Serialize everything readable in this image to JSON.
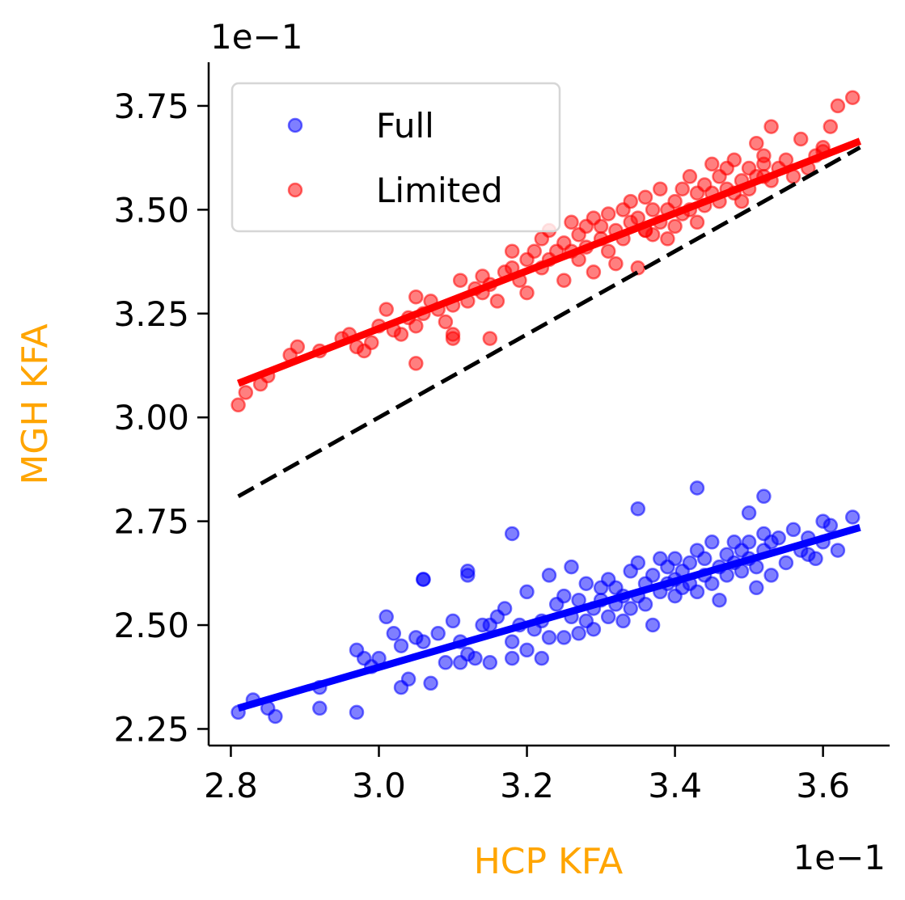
{
  "chart_data": {
    "type": "scatter",
    "xlabel": "HCP KFA",
    "ylabel": "MGH KFA",
    "label_color": "#FFA500",
    "x_offset_text": "1e−1",
    "y_offset_text": "1e−1",
    "xlim": [
      2.77,
      3.69
    ],
    "ylim": [
      2.21,
      3.855
    ],
    "x_ticks": [
      2.8,
      3.0,
      3.2,
      3.4,
      3.6
    ],
    "x_tick_labels": [
      "2.8",
      "3.0",
      "3.2",
      "3.4",
      "3.6"
    ],
    "y_ticks": [
      2.25,
      2.5,
      2.75,
      3.0,
      3.25,
      3.5,
      3.75
    ],
    "y_tick_labels": [
      "2.25",
      "2.50",
      "2.75",
      "3.00",
      "3.25",
      "3.50",
      "3.75"
    ],
    "grid": false,
    "legend": {
      "placement": "top-left"
    },
    "identity_line": {
      "x": [
        2.81,
        3.65
      ],
      "y": [
        2.81,
        3.65
      ],
      "color": "#000000",
      "style": "dashed"
    },
    "series": [
      {
        "name": "Full",
        "color": "#0000FF",
        "fit": {
          "x": [
            2.81,
            3.65
          ],
          "y": [
            2.3,
            2.735
          ]
        },
        "x": [
          2.81,
          2.83,
          2.85,
          2.86,
          2.92,
          2.92,
          2.97,
          2.97,
          2.98,
          2.99,
          3.0,
          3.01,
          3.02,
          3.03,
          3.03,
          3.04,
          3.05,
          3.06,
          3.06,
          3.07,
          3.08,
          3.09,
          3.1,
          3.11,
          3.11,
          3.12,
          3.12,
          3.13,
          3.14,
          3.15,
          3.15,
          3.16,
          3.17,
          3.18,
          3.18,
          3.19,
          3.2,
          3.2,
          3.21,
          3.22,
          3.22,
          3.23,
          3.23,
          3.24,
          3.25,
          3.25,
          3.26,
          3.26,
          3.27,
          3.27,
          3.28,
          3.28,
          3.29,
          3.29,
          3.3,
          3.3,
          3.31,
          3.31,
          3.32,
          3.32,
          3.33,
          3.33,
          3.34,
          3.34,
          3.35,
          3.35,
          3.36,
          3.36,
          3.37,
          3.37,
          3.38,
          3.38,
          3.39,
          3.39,
          3.4,
          3.4,
          3.4,
          3.41,
          3.41,
          3.42,
          3.42,
          3.43,
          3.43,
          3.44,
          3.44,
          3.45,
          3.45,
          3.46,
          3.46,
          3.47,
          3.47,
          3.48,
          3.48,
          3.49,
          3.49,
          3.5,
          3.5,
          3.51,
          3.51,
          3.52,
          3.52,
          3.53,
          3.53,
          3.54,
          3.55,
          3.56,
          3.57,
          3.58,
          3.59,
          3.6,
          3.61,
          3.62,
          3.64,
          3.43,
          3.35,
          3.18,
          3.06,
          3.12,
          3.52,
          3.5,
          3.58,
          3.6
        ],
        "y": [
          2.29,
          2.32,
          2.3,
          2.28,
          2.3,
          2.35,
          2.44,
          2.29,
          2.42,
          2.4,
          2.42,
          2.52,
          2.48,
          2.35,
          2.45,
          2.37,
          2.47,
          2.61,
          2.46,
          2.36,
          2.48,
          2.41,
          2.51,
          2.46,
          2.41,
          2.62,
          2.43,
          2.42,
          2.5,
          2.41,
          2.5,
          2.52,
          2.54,
          2.46,
          2.42,
          2.5,
          2.58,
          2.44,
          2.49,
          2.51,
          2.42,
          2.62,
          2.47,
          2.55,
          2.47,
          2.57,
          2.52,
          2.64,
          2.48,
          2.56,
          2.51,
          2.6,
          2.54,
          2.49,
          2.59,
          2.56,
          2.52,
          2.61,
          2.55,
          2.59,
          2.51,
          2.57,
          2.63,
          2.54,
          2.57,
          2.65,
          2.55,
          2.6,
          2.5,
          2.62,
          2.66,
          2.58,
          2.6,
          2.64,
          2.57,
          2.61,
          2.66,
          2.59,
          2.63,
          2.6,
          2.65,
          2.58,
          2.68,
          2.62,
          2.66,
          2.6,
          2.7,
          2.64,
          2.56,
          2.67,
          2.62,
          2.7,
          2.65,
          2.63,
          2.68,
          2.66,
          2.7,
          2.59,
          2.64,
          2.68,
          2.72,
          2.62,
          2.7,
          2.71,
          2.65,
          2.73,
          2.68,
          2.71,
          2.66,
          2.7,
          2.74,
          2.68,
          2.76,
          2.83,
          2.78,
          2.72,
          2.61,
          2.63,
          2.81,
          2.77,
          2.67,
          2.75
        ]
      },
      {
        "name": "Limited",
        "color": "#FF0000",
        "fit": {
          "x": [
            2.81,
            3.65
          ],
          "y": [
            3.082,
            3.665
          ]
        },
        "x": [
          2.81,
          2.82,
          2.84,
          2.85,
          2.88,
          2.89,
          2.92,
          2.95,
          2.96,
          2.97,
          2.98,
          2.99,
          3.0,
          3.01,
          3.02,
          3.03,
          3.04,
          3.05,
          3.05,
          3.06,
          3.07,
          3.08,
          3.09,
          3.1,
          3.1,
          3.11,
          3.12,
          3.13,
          3.14,
          3.14,
          3.15,
          3.16,
          3.17,
          3.18,
          3.18,
          3.19,
          3.2,
          3.2,
          3.21,
          3.22,
          3.22,
          3.23,
          3.23,
          3.24,
          3.25,
          3.25,
          3.26,
          3.26,
          3.27,
          3.27,
          3.28,
          3.28,
          3.29,
          3.29,
          3.3,
          3.3,
          3.31,
          3.31,
          3.32,
          3.32,
          3.33,
          3.33,
          3.34,
          3.34,
          3.35,
          3.35,
          3.36,
          3.36,
          3.37,
          3.37,
          3.38,
          3.38,
          3.39,
          3.39,
          3.4,
          3.4,
          3.41,
          3.41,
          3.42,
          3.42,
          3.43,
          3.43,
          3.44,
          3.44,
          3.45,
          3.45,
          3.46,
          3.46,
          3.47,
          3.47,
          3.48,
          3.48,
          3.49,
          3.49,
          3.5,
          3.5,
          3.51,
          3.51,
          3.52,
          3.52,
          3.53,
          3.53,
          3.54,
          3.55,
          3.56,
          3.57,
          3.58,
          3.59,
          3.6,
          3.61,
          3.62,
          3.64,
          3.05,
          3.1,
          3.15,
          3.36,
          3.52,
          3.6
        ],
        "y": [
          3.03,
          3.06,
          3.08,
          3.1,
          3.15,
          3.17,
          3.16,
          3.19,
          3.2,
          3.17,
          3.16,
          3.18,
          3.22,
          3.26,
          3.21,
          3.2,
          3.24,
          3.22,
          3.29,
          3.25,
          3.28,
          3.26,
          3.23,
          3.27,
          3.2,
          3.33,
          3.28,
          3.31,
          3.3,
          3.34,
          3.32,
          3.28,
          3.35,
          3.36,
          3.4,
          3.33,
          3.38,
          3.3,
          3.4,
          3.36,
          3.43,
          3.38,
          3.45,
          3.4,
          3.33,
          3.42,
          3.4,
          3.47,
          3.38,
          3.44,
          3.46,
          3.41,
          3.48,
          3.35,
          3.43,
          3.46,
          3.4,
          3.49,
          3.45,
          3.37,
          3.5,
          3.43,
          3.47,
          3.52,
          3.36,
          3.48,
          3.45,
          3.53,
          3.44,
          3.5,
          3.47,
          3.55,
          3.43,
          3.5,
          3.52,
          3.46,
          3.55,
          3.49,
          3.5,
          3.58,
          3.47,
          3.54,
          3.56,
          3.51,
          3.54,
          3.61,
          3.52,
          3.58,
          3.55,
          3.6,
          3.62,
          3.54,
          3.57,
          3.52,
          3.6,
          3.55,
          3.66,
          3.58,
          3.61,
          3.63,
          3.57,
          3.7,
          3.6,
          3.62,
          3.58,
          3.67,
          3.6,
          3.63,
          3.64,
          3.7,
          3.75,
          3.77,
          3.13,
          3.19,
          3.19,
          3.45,
          3.58,
          3.65
        ]
      }
    ]
  }
}
